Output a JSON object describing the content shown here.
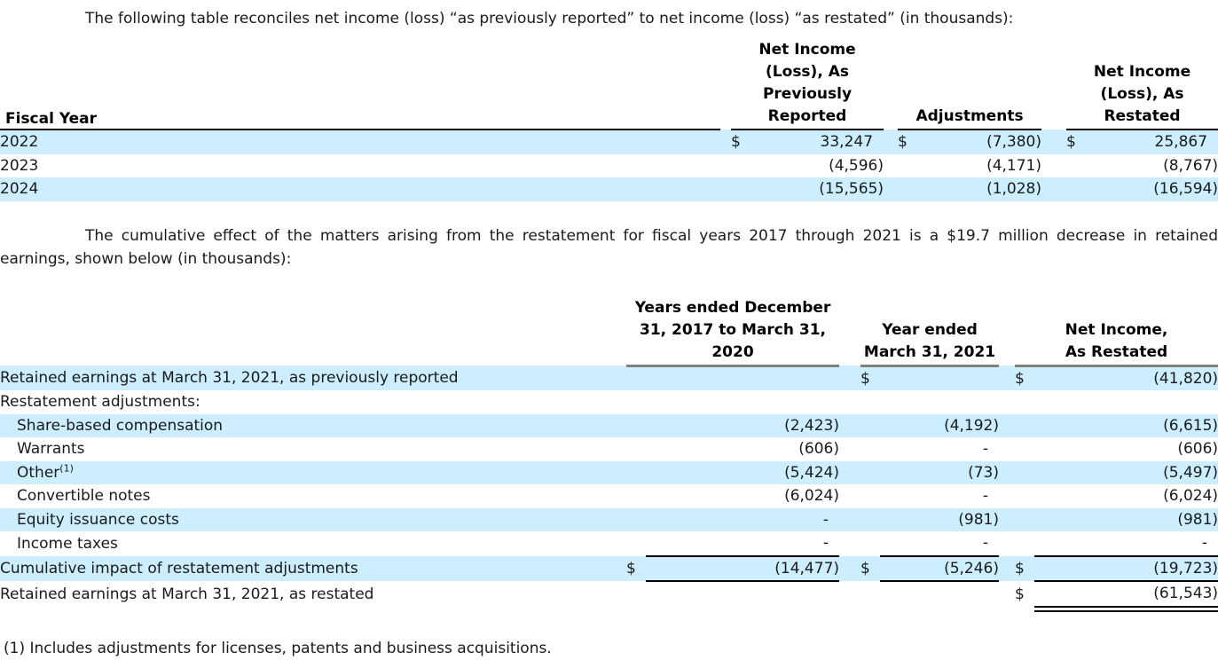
{
  "colors": {
    "row_highlight": "#cceeff",
    "header_rule_gray": "#808080",
    "rule_black": "#000000",
    "text": "#1a1a1a"
  },
  "intro": {
    "text": "The following table reconciles net income (loss) “as previously reported” to net income (loss) “as restated” (in thousands):"
  },
  "table1": {
    "label_header": "Fiscal Year",
    "columns": [
      "Net Income\n(Loss), As\nPreviously\nReported",
      "Adjustments",
      "Net Income\n(Loss), As\nRestated"
    ],
    "rows": [
      {
        "label": "2022",
        "highlight": true,
        "cells": [
          [
            "$",
            "33,247"
          ],
          [
            "$",
            "(7,380)"
          ],
          [
            "$",
            "25,867"
          ]
        ]
      },
      {
        "label": "2023",
        "highlight": false,
        "cells": [
          [
            "",
            "(4,596)"
          ],
          [
            "",
            "(4,171)"
          ],
          [
            "",
            "(8,767)"
          ]
        ]
      },
      {
        "label": "2024",
        "highlight": true,
        "cells": [
          [
            "",
            "(15,565)"
          ],
          [
            "",
            "(1,028)"
          ],
          [
            "",
            "(16,594)"
          ]
        ]
      }
    ]
  },
  "paragraph2": {
    "text": "The cumulative effect of the matters arising from the restatement for fiscal years 2017 through 2021 is a $19.7 million decrease in retained earnings, shown below (in thousands):"
  },
  "table2": {
    "columns": [
      "Years ended December\n31, 2017 to March 31,\n2020",
      "Year ended\nMarch 31, 2021",
      "Net Income,\nAs Restated"
    ],
    "rows": [
      {
        "label": "Retained earnings at March 31, 2021, as previously reported",
        "indent": false,
        "highlight": true,
        "cells": [
          [
            "",
            ""
          ],
          [
            "$",
            ""
          ],
          [
            "$",
            "(41,820)"
          ]
        ]
      },
      {
        "label": "Restatement adjustments:",
        "indent": false,
        "highlight": false,
        "cells": [
          [
            "",
            ""
          ],
          [
            "",
            ""
          ],
          [
            "",
            ""
          ]
        ]
      },
      {
        "label": "Share-based compensation",
        "indent": true,
        "highlight": true,
        "cells": [
          [
            "",
            "(2,423)"
          ],
          [
            "",
            "(4,192)"
          ],
          [
            "",
            "(6,615)"
          ]
        ]
      },
      {
        "label": "Warrants",
        "indent": true,
        "highlight": false,
        "cells": [
          [
            "",
            "(606)"
          ],
          [
            "",
            "-"
          ],
          [
            "",
            "(606)"
          ]
        ]
      },
      {
        "label": "Other",
        "sup": "(1)",
        "indent": true,
        "highlight": true,
        "cells": [
          [
            "",
            "(5,424)"
          ],
          [
            "",
            "(73)"
          ],
          [
            "",
            "(5,497)"
          ]
        ]
      },
      {
        "label": "Convertible notes",
        "indent": true,
        "highlight": false,
        "cells": [
          [
            "",
            "(6,024)"
          ],
          [
            "",
            "-"
          ],
          [
            "",
            "(6,024)"
          ]
        ]
      },
      {
        "label": "Equity issuance costs",
        "indent": true,
        "highlight": true,
        "cells": [
          [
            "",
            "-"
          ],
          [
            "",
            "(981)"
          ],
          [
            "",
            "(981)"
          ]
        ]
      },
      {
        "label": "Income taxes",
        "indent": true,
        "highlight": false,
        "underline_values": true,
        "cells": [
          [
            "",
            "-"
          ],
          [
            "",
            "-"
          ],
          [
            "",
            "-"
          ]
        ]
      },
      {
        "label": "Cumulative impact of restatement adjustments",
        "indent": false,
        "highlight": true,
        "underline_values": true,
        "cells": [
          [
            "$",
            "(14,477)"
          ],
          [
            "$",
            "(5,246)"
          ],
          [
            "$",
            "(19,723)"
          ]
        ]
      },
      {
        "label": "Retained earnings at March 31, 2021, as restated",
        "indent": false,
        "highlight": false,
        "double_underline_cols": [
          2
        ],
        "cells": [
          [
            "",
            ""
          ],
          [
            "",
            ""
          ],
          [
            "$",
            "(61,543)"
          ]
        ]
      }
    ]
  },
  "footnote": {
    "text": "(1) Includes adjustments for licenses, patents and business acquisitions."
  }
}
